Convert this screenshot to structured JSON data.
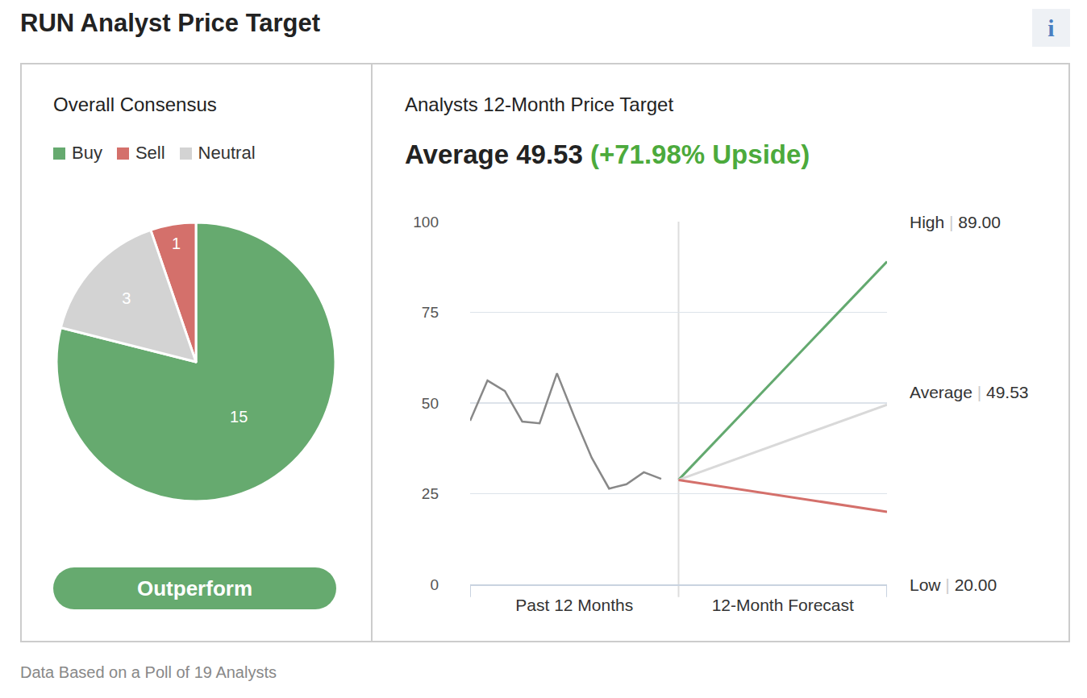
{
  "title": "RUN Analyst Price Target",
  "info_icon": "i",
  "footer": "Data Based on a Poll of 19 Analysts",
  "chart_data": [
    {
      "type": "pie",
      "title": "Overall Consensus",
      "categories": [
        "Buy",
        "Sell",
        "Neutral"
      ],
      "values": [
        15,
        1,
        3
      ],
      "colors": [
        "#66aa6f",
        "#d4706b",
        "#d3d3d3"
      ],
      "data_labels": true,
      "legend": "top",
      "consensus": "Outperform"
    },
    {
      "type": "line",
      "title": "Analysts 12-Month Price Target",
      "subtitle": "Average 49.53",
      "subtitle_note": "(+71.98% Upside)",
      "separator": "|",
      "xlim": [
        -12,
        12
      ],
      "xticks": [
        {
          "value": -6,
          "label": "Past 12 Months"
        },
        {
          "value": 6,
          "label": "12-Month Forecast"
        }
      ],
      "ylim": [
        0,
        100
      ],
      "yticks": [
        0,
        25,
        50,
        75,
        100
      ],
      "grid": true,
      "series": [
        {
          "color": "#888888",
          "x": [
            -12,
            -11,
            -10,
            -9,
            -8,
            -7,
            -6,
            -5,
            -4,
            -3,
            -2,
            -1
          ],
          "values": [
            45.1,
            56.2,
            53.3,
            44.9,
            44.4,
            58.2,
            46.2,
            34.9,
            26.4,
            27.6,
            30.9,
            29.1
          ]
        },
        {
          "name": "High",
          "color": "#63a96f",
          "x": [
            0,
            12
          ],
          "values": [
            28.8,
            89.0
          ],
          "value_labels": [
            null,
            "89.00"
          ]
        },
        {
          "name": "Average",
          "color": "#d9d9d9",
          "x": [
            0,
            12
          ],
          "values": [
            28.8,
            49.53
          ],
          "value_labels": [
            null,
            "49.53"
          ]
        },
        {
          "name": "Low",
          "color": "#d4706b",
          "x": [
            0,
            12
          ],
          "values": [
            28.8,
            20.0
          ],
          "value_labels": [
            null,
            "20.00"
          ]
        }
      ]
    }
  ]
}
